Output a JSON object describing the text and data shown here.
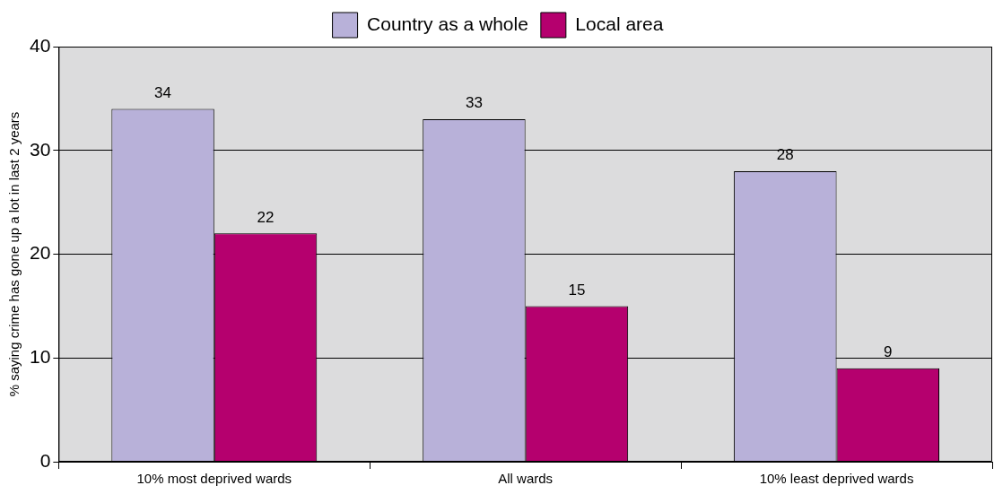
{
  "chart_data": {
    "type": "bar",
    "categories": [
      "10% most deprived wards",
      "All wards",
      "10% least deprived wards"
    ],
    "series": [
      {
        "name": "Country as a whole",
        "color": "#b8b1d9",
        "values": [
          34,
          33,
          28
        ]
      },
      {
        "name": "Local area",
        "color": "#b5006e",
        "values": [
          22,
          15,
          9
        ]
      }
    ],
    "ylabel": "% saying crime has gone up a lot in last 2 years",
    "ylim": [
      0,
      40
    ],
    "yticks": [
      0,
      10,
      20,
      30,
      40
    ],
    "grid": "y",
    "legend": "top",
    "data_labels": true
  }
}
